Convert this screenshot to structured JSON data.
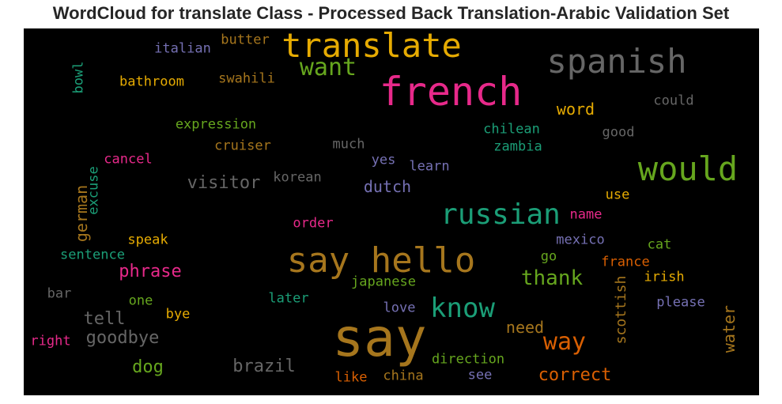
{
  "chart": {
    "title": "WordCloud for translate Class - Processed Back Translation-Arabic Validation Set"
  },
  "chart_data": {
    "type": "wordcloud",
    "background": "#000000",
    "palette": {
      "orange": "#d95f02",
      "green": "#1b9e77",
      "pink": "#e7298a",
      "lime": "#66a61e",
      "gold": "#e6ab02",
      "brown": "#a6761d",
      "gray": "#666666",
      "purple": "#7570b3"
    },
    "words": [
      {
        "text": "say",
        "color": "#a6761d"
      },
      {
        "text": "translate",
        "color": "#e6ab02"
      },
      {
        "text": "french",
        "color": "#e7298a"
      },
      {
        "text": "spanish",
        "color": "#666666"
      },
      {
        "text": "say hello",
        "color": "#a6761d"
      },
      {
        "text": "would",
        "color": "#66a61e"
      },
      {
        "text": "russian",
        "color": "#1b9e77"
      },
      {
        "text": "know",
        "color": "#1b9e77"
      },
      {
        "text": "want",
        "color": "#66a61e"
      },
      {
        "text": "way",
        "color": "#d95f02"
      },
      {
        "text": "thank",
        "color": "#66a61e"
      },
      {
        "text": "correct",
        "color": "#d95f02"
      },
      {
        "text": "brazil",
        "color": "#666666"
      },
      {
        "text": "goodbye",
        "color": "#666666"
      },
      {
        "text": "phrase",
        "color": "#e7298a"
      },
      {
        "text": "tell",
        "color": "#666666"
      },
      {
        "text": "visitor",
        "color": "#666666"
      },
      {
        "text": "dog",
        "color": "#66a61e"
      },
      {
        "text": "dutch",
        "color": "#7570b3"
      },
      {
        "text": "word",
        "color": "#e6ab02"
      },
      {
        "text": "need",
        "color": "#a6761d"
      },
      {
        "text": "water",
        "color": "#a6761d"
      },
      {
        "text": "german",
        "color": "#a6761d"
      },
      {
        "text": "scottish",
        "color": "#a6761d"
      },
      {
        "text": "could",
        "color": "#666666"
      },
      {
        "text": "good",
        "color": "#666666"
      },
      {
        "text": "chilean",
        "color": "#1b9e77"
      },
      {
        "text": "zambia",
        "color": "#1b9e77"
      },
      {
        "text": "expression",
        "color": "#66a61e"
      },
      {
        "text": "cruiser",
        "color": "#a6761d"
      },
      {
        "text": "much",
        "color": "#666666"
      },
      {
        "text": "korean",
        "color": "#666666"
      },
      {
        "text": "yes",
        "color": "#7570b3"
      },
      {
        "text": "learn",
        "color": "#7570b3"
      },
      {
        "text": "cancel",
        "color": "#e7298a"
      },
      {
        "text": "excuse",
        "color": "#1b9e77"
      },
      {
        "text": "bathroom",
        "color": "#e6ab02"
      },
      {
        "text": "swahili",
        "color": "#a6761d"
      },
      {
        "text": "italian",
        "color": "#7570b3"
      },
      {
        "text": "butter",
        "color": "#a6761d"
      },
      {
        "text": "bowl",
        "color": "#1b9e77"
      },
      {
        "text": "use",
        "color": "#e6ab02"
      },
      {
        "text": "name",
        "color": "#e7298a"
      },
      {
        "text": "order",
        "color": "#e7298a"
      },
      {
        "text": "speak",
        "color": "#e6ab02"
      },
      {
        "text": "sentence",
        "color": "#1b9e77"
      },
      {
        "text": "mexico",
        "color": "#7570b3"
      },
      {
        "text": "cat",
        "color": "#66a61e"
      },
      {
        "text": "go",
        "color": "#66a61e"
      },
      {
        "text": "france",
        "color": "#d95f02"
      },
      {
        "text": "irish",
        "color": "#e6ab02"
      },
      {
        "text": "japanese",
        "color": "#66a61e"
      },
      {
        "text": "bar",
        "color": "#666666"
      },
      {
        "text": "one",
        "color": "#66a61e"
      },
      {
        "text": "later",
        "color": "#1b9e77"
      },
      {
        "text": "love",
        "color": "#7570b3"
      },
      {
        "text": "please",
        "color": "#7570b3"
      },
      {
        "text": "bye",
        "color": "#e6ab02"
      },
      {
        "text": "right",
        "color": "#e7298a"
      },
      {
        "text": "direction",
        "color": "#66a61e"
      },
      {
        "text": "like",
        "color": "#d95f02"
      },
      {
        "text": "china",
        "color": "#a6761d"
      },
      {
        "text": "see",
        "color": "#7570b3"
      }
    ]
  }
}
